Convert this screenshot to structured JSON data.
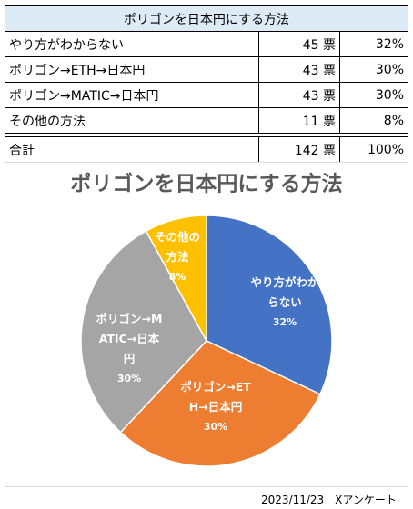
{
  "table": {
    "title": "ポリゴンを日本円にする方法",
    "rows": [
      [
        "やり方がわからない",
        "45 票",
        "32%"
      ],
      [
        "ポリゴン→ETH→日本円",
        "43 票",
        "30%"
      ],
      [
        "ポリゴン→MATIC→日本円",
        "43 票",
        "30%"
      ],
      [
        "その他の方法",
        "11 票",
        "8%"
      ]
    ],
    "total": [
      "合計",
      "142 票",
      "100%"
    ]
  },
  "chart_data": {
    "type": "pie",
    "title": "ポリゴンを日本円にする方法",
    "categories": [
      "やり方がわからない",
      "ポリゴン→ETH→日本円",
      "ポリゴン→MATIC→日本円",
      "その他の方法"
    ],
    "values": [
      32,
      30,
      30,
      8
    ],
    "value_labels": [
      "32%",
      "30%",
      "30%",
      "8%"
    ],
    "colors": [
      "#4472c4",
      "#ed7d31",
      "#a5a5a5",
      "#ffc000"
    ]
  },
  "footer": "2023/11/23　Xアンケート"
}
